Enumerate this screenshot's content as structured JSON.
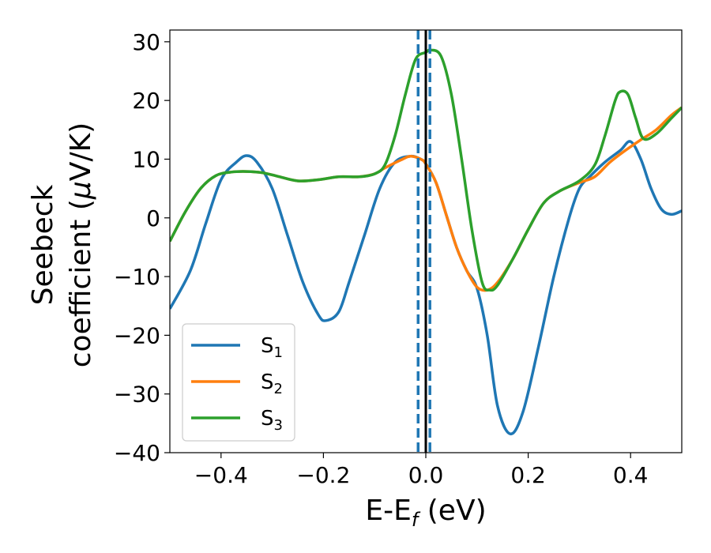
{
  "chart_data": {
    "type": "line",
    "xlabel": {
      "main": "E-E",
      "sub": "f",
      "unit": " (eV)"
    },
    "ylabel": {
      "line1": "Seebeck",
      "line2_prefix": "coefficient  (",
      "mu": "μ",
      "line2_suffix": "V/K)"
    },
    "xlim": [
      -0.5,
      0.5
    ],
    "ylim": [
      -40,
      32
    ],
    "xticks": [
      -0.4,
      -0.2,
      0.0,
      0.2,
      0.4
    ],
    "xtick_labels": [
      "−0.4",
      "−0.2",
      "0.0",
      "0.2",
      "0.4"
    ],
    "yticks": [
      -40,
      -30,
      -20,
      -10,
      0,
      10,
      20,
      30
    ],
    "ytick_labels": [
      "−40",
      "−30",
      "−20",
      "−10",
      "0",
      "10",
      "20",
      "30"
    ],
    "grid": false,
    "legend_position": "lower-left",
    "vlines": [
      {
        "x": 0.0,
        "style": "solid",
        "color": "#000000"
      },
      {
        "x": -0.015,
        "style": "dashed",
        "color": "#1f77b4"
      },
      {
        "x": 0.008,
        "style": "dashed",
        "color": "#1f77b4"
      }
    ],
    "series": [
      {
        "name": "S",
        "sub": "1",
        "color": "#1f77b4",
        "points": [
          [
            -0.5,
            -15.5
          ],
          [
            -0.46,
            -9
          ],
          [
            -0.43,
            -1
          ],
          [
            -0.4,
            6.5
          ],
          [
            -0.37,
            9.5
          ],
          [
            -0.35,
            10.6
          ],
          [
            -0.33,
            9.5
          ],
          [
            -0.3,
            5
          ],
          [
            -0.27,
            -3
          ],
          [
            -0.24,
            -11
          ],
          [
            -0.21,
            -16.5
          ],
          [
            -0.195,
            -17.5
          ],
          [
            -0.17,
            -16
          ],
          [
            -0.15,
            -11
          ],
          [
            -0.12,
            -3
          ],
          [
            -0.09,
            5
          ],
          [
            -0.06,
            9.5
          ],
          [
            -0.03,
            10.5
          ],
          [
            -0.01,
            10
          ],
          [
            0.0,
            9.2
          ],
          [
            0.02,
            6
          ],
          [
            0.04,
            0.5
          ],
          [
            0.06,
            -5
          ],
          [
            0.08,
            -9
          ],
          [
            0.1,
            -12
          ],
          [
            0.12,
            -20
          ],
          [
            0.14,
            -32
          ],
          [
            0.165,
            -36.8
          ],
          [
            0.19,
            -33
          ],
          [
            0.22,
            -22
          ],
          [
            0.25,
            -10
          ],
          [
            0.28,
            0
          ],
          [
            0.3,
            5
          ],
          [
            0.32,
            7
          ],
          [
            0.35,
            9.5
          ],
          [
            0.38,
            11.5
          ],
          [
            0.4,
            13
          ],
          [
            0.42,
            10
          ],
          [
            0.44,
            5
          ],
          [
            0.46,
            1.5
          ],
          [
            0.48,
            0.6
          ],
          [
            0.5,
            1.2
          ]
        ]
      },
      {
        "name": "S",
        "sub": "2",
        "color": "#ff7f0e",
        "points": [
          [
            -0.5,
            -4
          ],
          [
            -0.47,
            1
          ],
          [
            -0.44,
            5
          ],
          [
            -0.41,
            7.2
          ],
          [
            -0.38,
            7.8
          ],
          [
            -0.35,
            7.9
          ],
          [
            -0.32,
            7.7
          ],
          [
            -0.29,
            7.1
          ],
          [
            -0.25,
            6.3
          ],
          [
            -0.21,
            6.5
          ],
          [
            -0.17,
            7
          ],
          [
            -0.13,
            7
          ],
          [
            -0.1,
            7.5
          ],
          [
            -0.08,
            8.5
          ],
          [
            -0.05,
            9.8
          ],
          [
            -0.03,
            10.5
          ],
          [
            -0.01,
            10
          ],
          [
            0.0,
            9.2
          ],
          [
            0.02,
            6
          ],
          [
            0.04,
            0.5
          ],
          [
            0.06,
            -5
          ],
          [
            0.08,
            -9
          ],
          [
            0.1,
            -11.8
          ],
          [
            0.12,
            -12.3
          ],
          [
            0.14,
            -11
          ],
          [
            0.17,
            -7
          ],
          [
            0.2,
            -2
          ],
          [
            0.23,
            2.5
          ],
          [
            0.26,
            4.5
          ],
          [
            0.3,
            6
          ],
          [
            0.33,
            7
          ],
          [
            0.36,
            9.5
          ],
          [
            0.39,
            11.5
          ],
          [
            0.42,
            13.3
          ],
          [
            0.45,
            15
          ],
          [
            0.48,
            17.5
          ],
          [
            0.5,
            18.8
          ]
        ]
      },
      {
        "name": "S",
        "sub": "3",
        "color": "#2ca02c",
        "points": [
          [
            -0.5,
            -4
          ],
          [
            -0.47,
            1
          ],
          [
            -0.44,
            5
          ],
          [
            -0.41,
            7.2
          ],
          [
            -0.38,
            7.8
          ],
          [
            -0.35,
            7.9
          ],
          [
            -0.32,
            7.7
          ],
          [
            -0.29,
            7.1
          ],
          [
            -0.25,
            6.3
          ],
          [
            -0.21,
            6.5
          ],
          [
            -0.17,
            7
          ],
          [
            -0.13,
            7
          ],
          [
            -0.1,
            7.5
          ],
          [
            -0.08,
            9
          ],
          [
            -0.06,
            14
          ],
          [
            -0.04,
            21
          ],
          [
            -0.02,
            27
          ],
          [
            0.0,
            28.2
          ],
          [
            0.01,
            28.6
          ],
          [
            0.03,
            27.5
          ],
          [
            0.05,
            21
          ],
          [
            0.07,
            10
          ],
          [
            0.09,
            -2
          ],
          [
            0.11,
            -11
          ],
          [
            0.125,
            -12.3
          ],
          [
            0.14,
            -11.5
          ],
          [
            0.17,
            -7
          ],
          [
            0.2,
            -2
          ],
          [
            0.23,
            2.5
          ],
          [
            0.26,
            4.5
          ],
          [
            0.3,
            6.3
          ],
          [
            0.33,
            9
          ],
          [
            0.35,
            14
          ],
          [
            0.37,
            20
          ],
          [
            0.38,
            21.5
          ],
          [
            0.395,
            21
          ],
          [
            0.41,
            17
          ],
          [
            0.425,
            13.5
          ],
          [
            0.45,
            14.3
          ],
          [
            0.48,
            17
          ],
          [
            0.5,
            18.8
          ]
        ]
      }
    ]
  }
}
